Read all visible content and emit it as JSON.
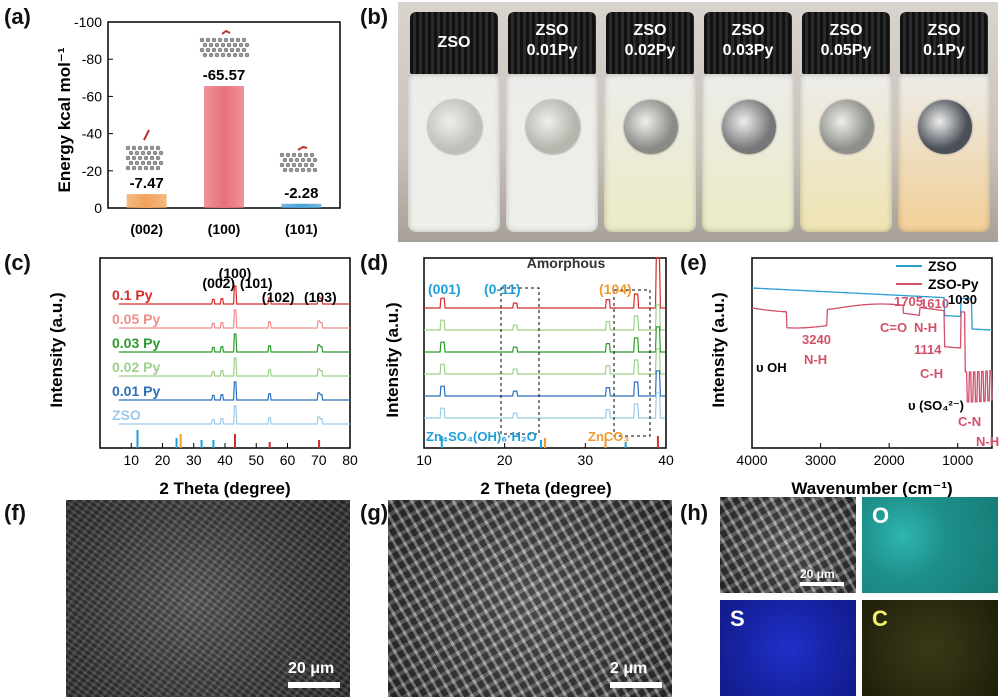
{
  "panels": {
    "a": "(a)",
    "b": "(b)",
    "c": "(c)",
    "d": "(d)",
    "e": "(e)",
    "f": "(f)",
    "g": "(g)",
    "h": "(h)"
  },
  "chart_data": [
    {
      "panel": "a",
      "type": "bar",
      "ylabel": "Energy kcal mol⁻¹",
      "ylim": [
        0,
        -100
      ],
      "yticks": [
        "0",
        "-20",
        "-40",
        "-60",
        "-80",
        "-100"
      ],
      "categories": [
        "(002)",
        "(100)",
        "(101)"
      ],
      "values": [
        -7.47,
        -65.57,
        -2.28
      ],
      "value_labels": [
        "-7.47",
        "-65.57",
        "-2.28"
      ],
      "colors": [
        "#f0a25a",
        "#e8707a",
        "#4aa3d8"
      ]
    },
    {
      "panel": "c",
      "type": "line",
      "xlabel": "2 Theta (degree)",
      "ylabel": "Intensity (a.u.)",
      "xlim": [
        0,
        80
      ],
      "xticks": [
        "10",
        "20",
        "30",
        "40",
        "50",
        "60",
        "70",
        "80"
      ],
      "peak_labels": [
        "(002)",
        "(100)",
        "(101)",
        "(102)",
        "(103)"
      ],
      "series": [
        {
          "name": "0.1 Py",
          "color": "#d42c2c"
        },
        {
          "name": "0.05 Py",
          "color": "#f08c8c"
        },
        {
          "name": "0.03 Py",
          "color": "#2c9a2c"
        },
        {
          "name": "0.02 Py",
          "color": "#9ed08a"
        },
        {
          "name": "0.01 Py",
          "color": "#2a6fb8"
        },
        {
          "name": "ZSO",
          "color": "#9ccbe8"
        }
      ]
    },
    {
      "panel": "d",
      "type": "line",
      "xlabel": "2 Theta (degree)",
      "ylabel": "Intensity (a.u.)",
      "xlim": [
        10,
        40
      ],
      "xticks": [
        "10",
        "20",
        "30",
        "40"
      ],
      "annotations": [
        "Amorphous",
        "(001)",
        "(0-11)",
        "(104)"
      ],
      "reference_labels": [
        "Zn₄SO₄(OH)₆·H₂O",
        "ZnCO₃"
      ],
      "series_colors": [
        "#d42c2c",
        "#9ed08a",
        "#2c9a2c",
        "#9ed08a",
        "#2a6fb8",
        "#9ccbe8"
      ]
    },
    {
      "panel": "e",
      "type": "line",
      "xlabel": "Wavenumber (cm⁻¹)",
      "ylabel": "Intensity (a.u.)",
      "xlim": [
        4000,
        500
      ],
      "xticks": [
        "4000",
        "3000",
        "2000",
        "1000"
      ],
      "series": [
        {
          "name": "ZSO",
          "color": "#2a9fd0"
        },
        {
          "name": "ZSO-Py",
          "color": "#d4506a"
        }
      ],
      "annotations": [
        "υ OH",
        "3240",
        "N-H",
        "1705",
        "C=O",
        "1610",
        "N-H",
        "1030",
        "1114",
        "C-H",
        "υ (SO₄²⁻)",
        "C-N",
        "N-H"
      ]
    }
  ],
  "vials": [
    {
      "line1": "ZSO",
      "line2": ""
    },
    {
      "line1": "ZSO",
      "line2": "0.01Py"
    },
    {
      "line1": "ZSO",
      "line2": "0.02Py"
    },
    {
      "line1": "ZSO",
      "line2": "0.03Py"
    },
    {
      "line1": "ZSO",
      "line2": "0.05Py"
    },
    {
      "line1": "ZSO",
      "line2": "0.1Py"
    }
  ],
  "vial_liquid_colors": [
    "#eef0ea",
    "#eef0ea",
    "#ecebc6",
    "#ecebc6",
    "#efe4b2",
    "#f2cf96"
  ],
  "vial_disc_colors": [
    "#bfbfbb",
    "#b6b6ae",
    "#8a8a86",
    "#77777a",
    "#8e8e8a",
    "#4a4f58"
  ],
  "scalebars": {
    "f": "20 μm",
    "g": "2 μm",
    "h": "20 μm"
  },
  "map_labels": {
    "o": "O",
    "s": "S",
    "c": "C"
  }
}
